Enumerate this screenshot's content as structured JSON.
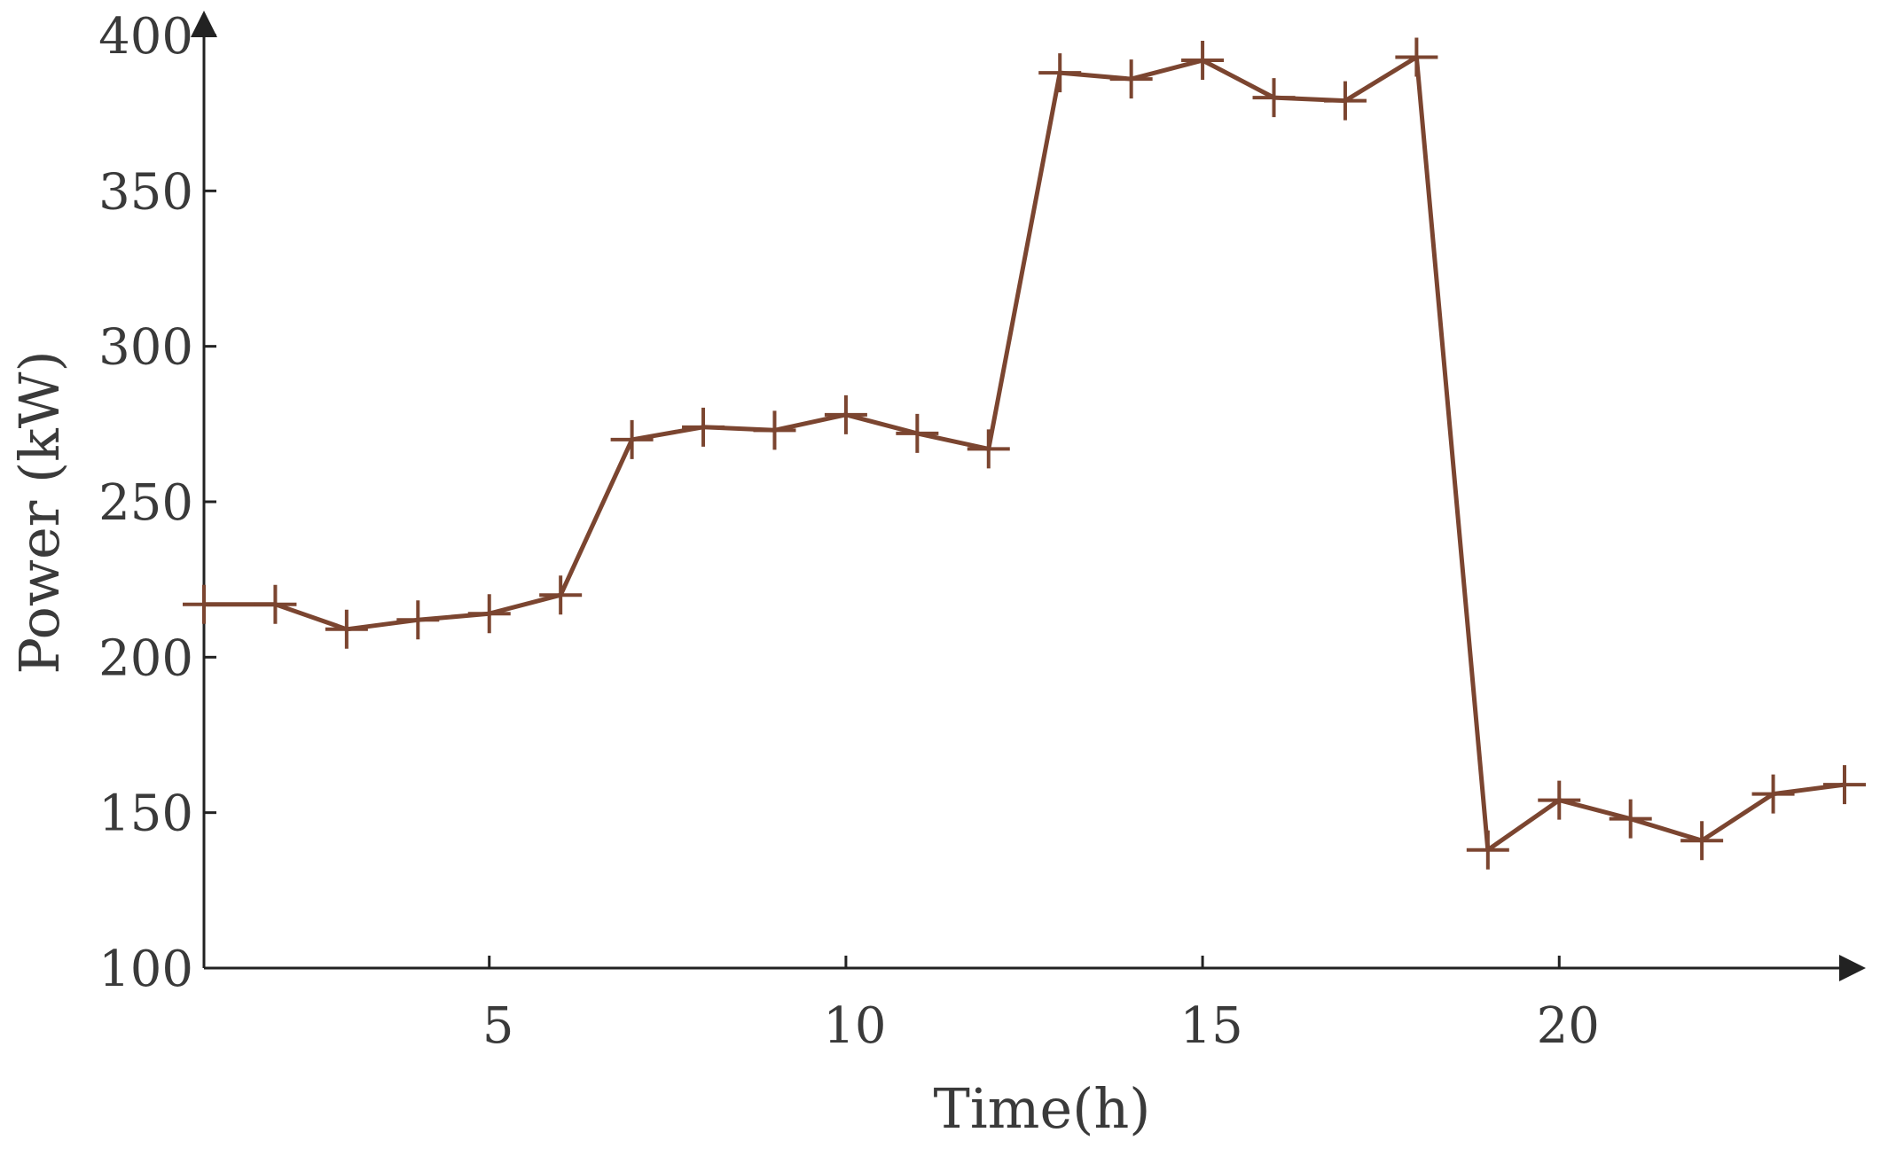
{
  "chart_data": {
    "type": "line",
    "title": "",
    "xlabel": "Time(h)",
    "ylabel": "Power (kW)",
    "xlim": [
      1,
      24
    ],
    "ylim": [
      100,
      400
    ],
    "x_ticks": [
      5,
      10,
      15,
      20
    ],
    "y_ticks": [
      100,
      150,
      200,
      250,
      300,
      350,
      400
    ],
    "grid": false,
    "legend": "none",
    "marker": "plus",
    "series": [
      {
        "color": "#7b4530",
        "x": [
          1,
          2,
          3,
          4,
          5,
          6,
          7,
          8,
          9,
          10,
          11,
          12,
          13,
          14,
          15,
          16,
          17,
          18,
          19,
          20,
          21,
          22,
          23,
          24
        ],
        "values": [
          217,
          217,
          209,
          212,
          214,
          220,
          270,
          274,
          273,
          278,
          272,
          267,
          388,
          386,
          392,
          380,
          379,
          393,
          138,
          154,
          148,
          141,
          156,
          159
        ]
      }
    ]
  }
}
